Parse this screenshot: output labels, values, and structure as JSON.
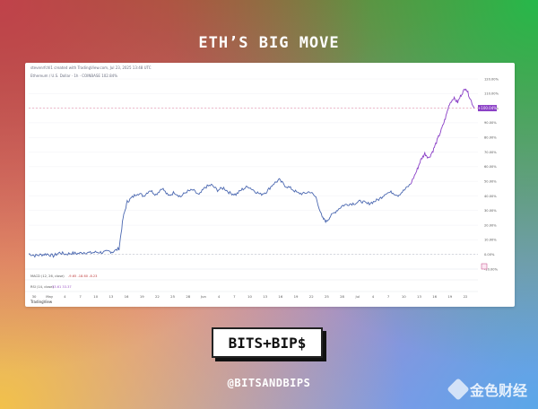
{
  "header": {
    "title": "ETH’S BIG MOVE"
  },
  "chart_meta": {
    "attribution": "stevenrfchl1 created with TradingView.com, Jul 23, 2025 13:48 UTC",
    "symbol": "Ethereum / U.S. Dollar · 1h · COINBASE  102.84%",
    "indicator1": "MACD (12, 26, close)",
    "indicator1_values": "-9.65  -18.60  -8.23",
    "indicator2": "RSI (14, close)",
    "indicator2_values": "33.61  33.37",
    "platform": "TradingView",
    "price_badge": "+100.04%"
  },
  "chart_data": {
    "type": "line",
    "xlabel": "",
    "ylabel": "",
    "x_ticks": [
      "30",
      "May",
      "4",
      "7",
      "10",
      "13",
      "16",
      "19",
      "22",
      "25",
      "28",
      "Jun",
      "4",
      "7",
      "10",
      "13",
      "16",
      "19",
      "22",
      "25",
      "28",
      "Jul",
      "4",
      "7",
      "10",
      "13",
      "16",
      "19",
      "22"
    ],
    "y_ticks": [
      "120.00%",
      "110.00%",
      "100.00%",
      "90.00%",
      "80.00%",
      "70.00%",
      "60.00%",
      "50.00%",
      "40.00%",
      "30.00%",
      "20.00%",
      "10.00%",
      "0.00%",
      "-10.00%"
    ],
    "ylim": [
      -10,
      120
    ],
    "series": [
      {
        "color": "#4a67b0",
        "values": [
          [
            0.0,
            0.5
          ],
          [
            1.5,
            -0.8
          ],
          [
            3.0,
            -0.2
          ],
          [
            4.5,
            0.3
          ],
          [
            6.0,
            -1.0
          ],
          [
            7.5,
            1.2
          ],
          [
            9.0,
            0.2
          ],
          [
            10.5,
            0.9
          ],
          [
            12.0,
            0.6
          ],
          [
            13.5,
            1.5
          ],
          [
            15.0,
            1.0
          ],
          [
            16.5,
            1.6
          ],
          [
            18.0,
            1.4
          ],
          [
            19.5,
            2.0
          ],
          [
            20.5,
            1.8
          ],
          [
            22.0,
            4.0
          ],
          [
            23.0,
            25.0
          ],
          [
            24.0,
            36.0
          ],
          [
            25.0,
            38.5
          ],
          [
            26.5,
            42.0
          ],
          [
            28.0,
            40.0
          ],
          [
            29.5,
            44.0
          ],
          [
            31.0,
            41.0
          ],
          [
            32.5,
            45.5
          ],
          [
            34.0,
            40.0
          ],
          [
            35.5,
            42.5
          ],
          [
            37.0,
            39.5
          ],
          [
            38.5,
            43.0
          ],
          [
            40.0,
            44.0
          ],
          [
            41.5,
            40.5
          ],
          [
            43.0,
            46.0
          ],
          [
            44.5,
            47.5
          ],
          [
            46.0,
            44.0
          ],
          [
            47.5,
            45.5
          ],
          [
            49.0,
            42.0
          ],
          [
            50.5,
            41.0
          ],
          [
            52.0,
            44.5
          ],
          [
            53.5,
            46.5
          ],
          [
            55.0,
            43.5
          ],
          [
            56.5,
            41.0
          ],
          [
            58.0,
            43.0
          ],
          [
            59.5,
            48.0
          ],
          [
            61.0,
            51.0
          ],
          [
            62.5,
            47.0
          ],
          [
            64.0,
            45.0
          ],
          [
            65.5,
            42.0
          ],
          [
            67.0,
            41.5
          ],
          [
            68.5,
            43.0
          ],
          [
            70.0,
            39.0
          ],
          [
            71.5,
            25.0
          ],
          [
            72.5,
            22.5
          ],
          [
            73.5,
            26.0
          ],
          [
            75.0,
            30.0
          ],
          [
            76.5,
            33.5
          ],
          [
            78.0,
            34.5
          ],
          [
            79.5,
            35.0
          ],
          [
            81.0,
            36.5
          ],
          [
            82.5,
            34.5
          ],
          [
            84.0,
            36.0
          ],
          [
            85.5,
            38.0
          ],
          [
            87.0,
            42.0
          ],
          [
            88.5,
            42.5
          ],
          [
            90.0,
            40.5
          ],
          [
            91.5,
            44.0
          ],
          [
            93.0,
            48.0
          ],
          [
            94.5,
            57.0
          ],
          [
            95.5,
            64.5
          ],
          [
            96.5,
            69.0
          ],
          [
            97.5,
            66.0
          ],
          [
            98.5,
            71.0
          ],
          [
            99.5,
            78.0
          ],
          [
            100.5,
            85.0
          ],
          [
            101.5,
            93.0
          ],
          [
            102.5,
            103.0
          ],
          [
            103.5,
            107.0
          ],
          [
            104.5,
            104.0
          ],
          [
            105.5,
            110.0
          ],
          [
            106.5,
            114.0
          ],
          [
            107.5,
            107.0
          ],
          [
            108.5,
            100.04
          ]
        ]
      }
    ],
    "reference_lines": [
      100.04,
      0
    ]
  },
  "footer": {
    "logo": "BITS+BIP$",
    "handle": "@BITSANDBIPS",
    "watermark": "金色财经"
  }
}
